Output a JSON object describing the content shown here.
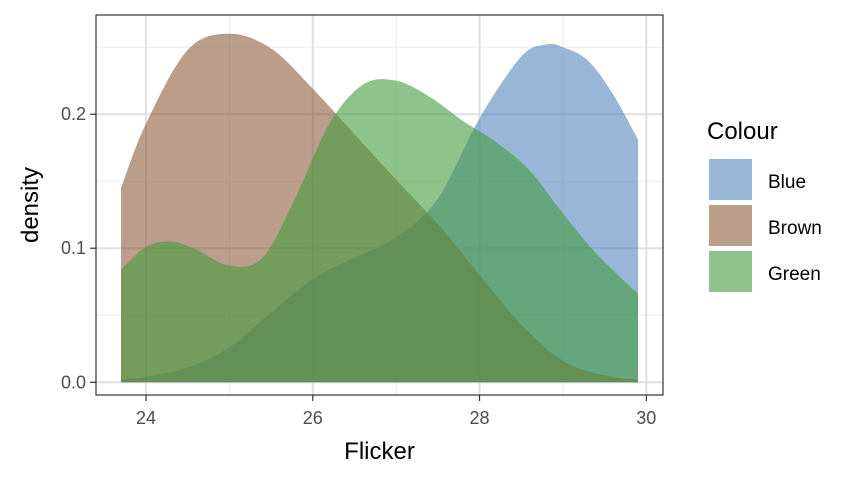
{
  "chart_data": {
    "type": "area",
    "subtype": "density",
    "xlabel": "Flicker",
    "ylabel": "density",
    "xlim": [
      23.4,
      30.2
    ],
    "ylim": [
      -0.0095,
      0.274
    ],
    "x_ticks": [
      24,
      26,
      28,
      30
    ],
    "x_tick_labels": [
      "24",
      "26",
      "28",
      "30"
    ],
    "y_ticks": [
      0.0,
      0.1,
      0.2
    ],
    "y_tick_labels": [
      "0.0",
      "0.1",
      "0.2"
    ],
    "x_minor_gridlines": [
      25,
      27,
      29
    ],
    "y_minor_gridlines": [
      0.05,
      0.15,
      0.25
    ],
    "grid": true,
    "fill_opacity": 0.6,
    "legend": {
      "title": "Colour",
      "position": "right",
      "entries": [
        "Blue",
        "Brown",
        "Green"
      ]
    },
    "series": [
      {
        "name": "Blue",
        "color": "#5585BC",
        "x": [
          23.7,
          24.0,
          24.5,
          25.0,
          25.5,
          26.0,
          26.5,
          27.0,
          27.5,
          28.0,
          28.5,
          28.8,
          29.0,
          29.3,
          29.6,
          29.9
        ],
        "values": [
          0.002,
          0.004,
          0.011,
          0.026,
          0.052,
          0.077,
          0.093,
          0.108,
          0.137,
          0.197,
          0.243,
          0.252,
          0.25,
          0.24,
          0.215,
          0.181
        ]
      },
      {
        "name": "Brown",
        "color": "#8C5E3C",
        "x": [
          23.7,
          24.0,
          24.5,
          25.0,
          25.5,
          26.0,
          26.5,
          27.0,
          27.5,
          28.0,
          28.5,
          29.0,
          29.5,
          29.9
        ],
        "values": [
          0.145,
          0.193,
          0.248,
          0.26,
          0.249,
          0.219,
          0.185,
          0.151,
          0.118,
          0.08,
          0.043,
          0.016,
          0.005,
          0.002
        ]
      },
      {
        "name": "Green",
        "color": "#449B3F",
        "x": [
          23.7,
          24.0,
          24.3,
          24.6,
          25.0,
          25.4,
          25.8,
          26.2,
          26.6,
          27.0,
          27.4,
          27.8,
          28.2,
          28.6,
          29.0,
          29.4,
          29.9
        ],
        "values": [
          0.084,
          0.101,
          0.105,
          0.099,
          0.087,
          0.093,
          0.139,
          0.193,
          0.222,
          0.225,
          0.213,
          0.195,
          0.179,
          0.158,
          0.126,
          0.096,
          0.066
        ]
      }
    ]
  }
}
